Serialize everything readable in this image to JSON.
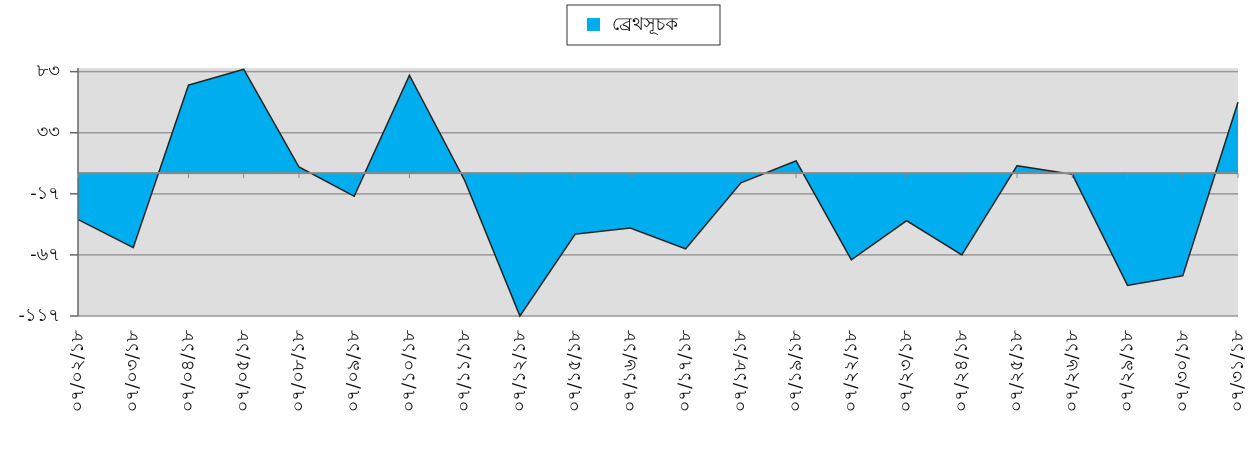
{
  "chart_data": {
    "type": "area",
    "categories": [
      "০৭/০২/১৮",
      "০৭/০৩/১৮",
      "০৭/০৪/১৮",
      "০৭/০৫/১৮",
      "০৭/০৮/১৮",
      "০৭/০৯/১৮",
      "০৭/১০/১৮",
      "০৭/১১/১৮",
      "০৭/১২/১৮",
      "০৭/১৫/১৮",
      "০৭/১৬/১৮",
      "০৭/১৭/১৮",
      "০৭/১৮/১৮",
      "০৭/১৯/১৮",
      "০৭/২২/১৮",
      "০৭/২৩/১৮",
      "০৭/২৪/১৮",
      "০৭/২৫/১৮",
      "০৭/২৬/১৮",
      "০৭/২৯/১৮",
      "০৭/৩০/১৮",
      "০৭/৩১/১৮"
    ],
    "series": [
      {
        "name": "ব্রেথসূচক",
        "color": "#00aeef",
        "values": [
          -38,
          -61,
          72,
          85,
          5,
          -19,
          80,
          -6,
          -117,
          -50,
          -45,
          -62,
          -8,
          10,
          -71,
          -39,
          -67,
          6,
          -1,
          -92,
          -84,
          58
        ]
      }
    ],
    "ylim": [
      -117,
      86
    ],
    "yticks": [
      {
        "value": -117,
        "label": "-১১৭"
      },
      {
        "value": -67,
        "label": "-৬৭"
      },
      {
        "value": -17,
        "label": "-১৭"
      },
      {
        "value": 33,
        "label": "৩৩"
      },
      {
        "value": 83,
        "label": "৮৩"
      }
    ],
    "grid": true,
    "legend": "top"
  }
}
